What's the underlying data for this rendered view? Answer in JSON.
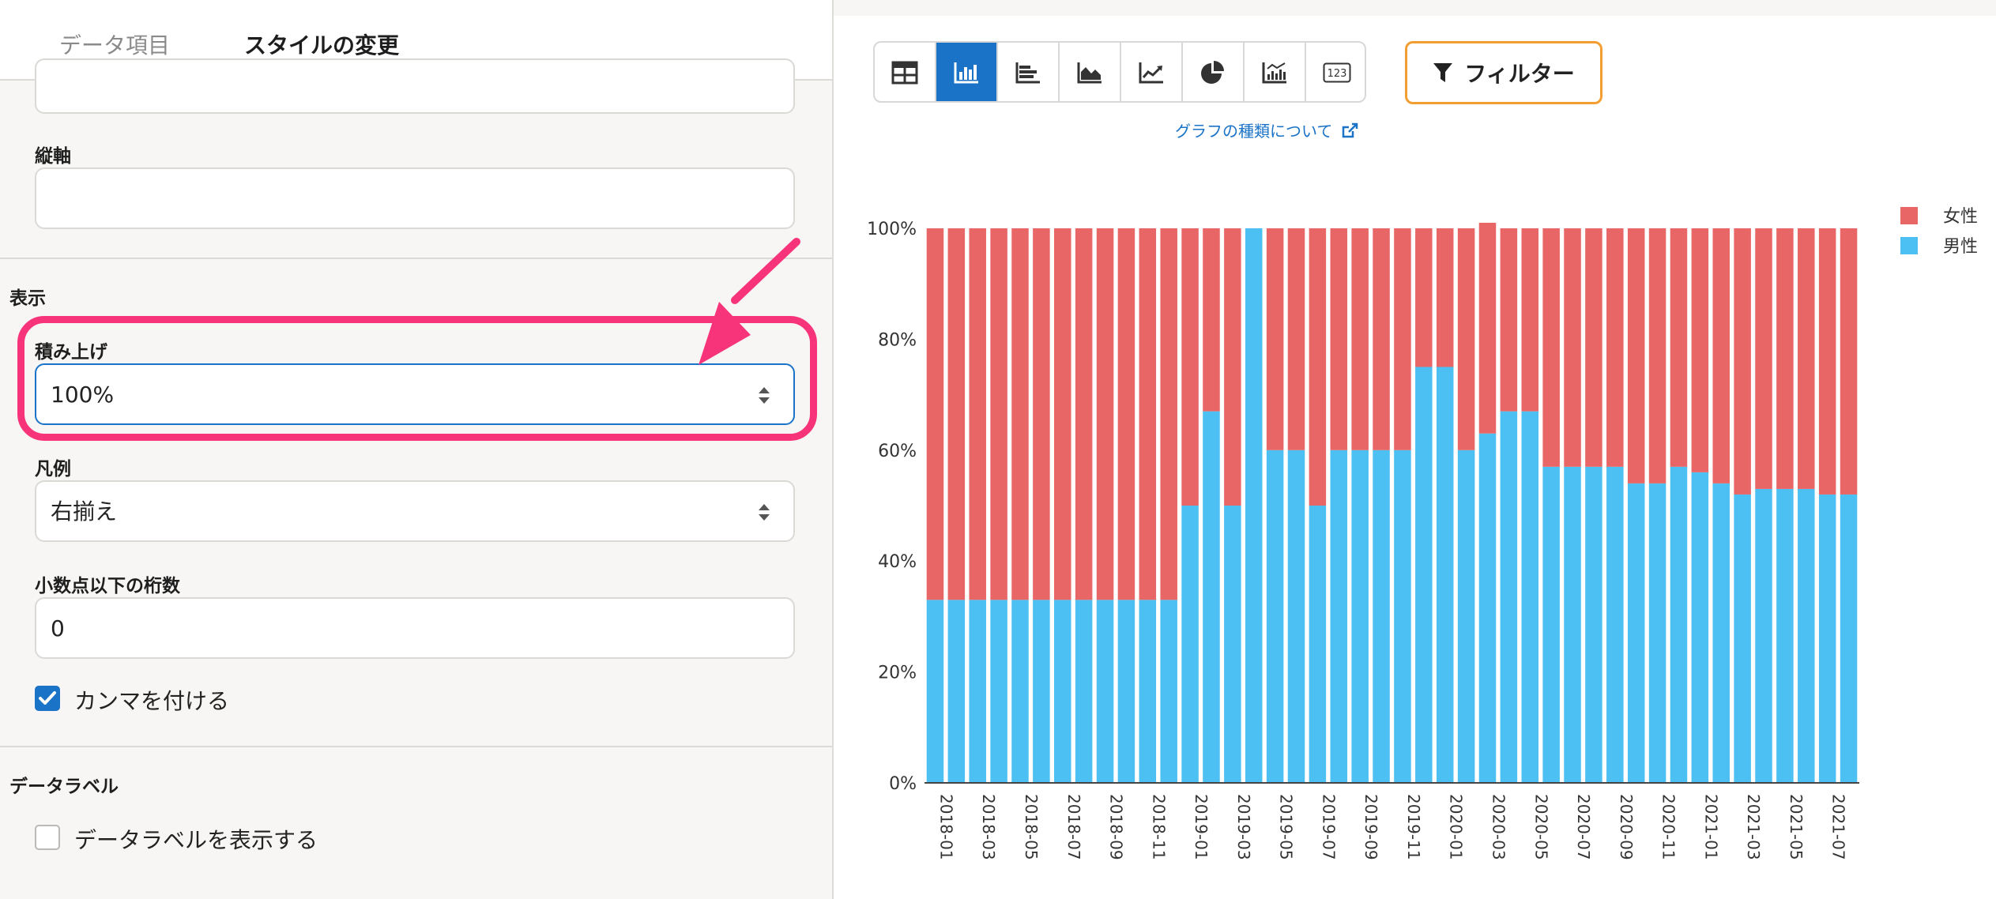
{
  "tabs": {
    "data_items": "データ項目",
    "style_change": "スタイルの変更"
  },
  "settings": {
    "vertical_axis": {
      "label": "縦軸",
      "value": ""
    },
    "display_section": "表示",
    "stacking": {
      "label": "積み上げ",
      "value": "100%"
    },
    "legend": {
      "label": "凡例",
      "value": "右揃え"
    },
    "decimals": {
      "label": "小数点以下の桁数",
      "value": "0"
    },
    "comma": {
      "label": "カンマを付ける",
      "checked": true
    },
    "data_label_section": "データラベル",
    "show_data_labels": {
      "label": "データラベルを表示する",
      "checked": false
    }
  },
  "toolbar": {
    "chart_types": [
      "table-icon",
      "bar-chart-icon",
      "horizontal-bar-icon",
      "area-chart-icon",
      "line-chart-icon",
      "pie-chart-icon",
      "combo-chart-icon",
      "number-icon"
    ],
    "active_index": 1,
    "number_icon_text": "123",
    "filter_label": "フィルター",
    "chart_type_link": "グラフの種類について"
  },
  "colors": {
    "female": "#e86666",
    "male": "#4cc0f2",
    "accent": "#1a73c7",
    "highlight": "#f7347a",
    "filter_border": "#f29e33"
  },
  "chart_data": {
    "type": "bar",
    "stacked": "100%",
    "categories": [
      "2018-01",
      "2018-02",
      "2018-03",
      "2018-04",
      "2018-05",
      "2018-06",
      "2018-07",
      "2018-08",
      "2018-09",
      "2018-10",
      "2018-11",
      "2018-12",
      "2019-01",
      "2019-02",
      "2019-03",
      "2019-04",
      "2019-05",
      "2019-06",
      "2019-07",
      "2019-08",
      "2019-09",
      "2019-10",
      "2019-11",
      "2019-12",
      "2020-01",
      "2020-02",
      "2020-03",
      "2020-04",
      "2020-05",
      "2020-06",
      "2020-07",
      "2020-08",
      "2020-09",
      "2020-10",
      "2020-11",
      "2020-12",
      "2021-01",
      "2021-02",
      "2021-03",
      "2021-04",
      "2021-05",
      "2021-06",
      "2021-07",
      "2021-08"
    ],
    "x_tick_labels": [
      "2018-01",
      "2018-03",
      "2018-05",
      "2018-07",
      "2018-09",
      "2018-11",
      "2019-01",
      "2019-03",
      "2019-05",
      "2019-07",
      "2019-09",
      "2019-11",
      "2020-01",
      "2020-03",
      "2020-05",
      "2020-07",
      "2020-09",
      "2020-11",
      "2021-01",
      "2021-03",
      "2021-05",
      "2021-07"
    ],
    "series": [
      {
        "name": "男性",
        "color": "#4cc0f2",
        "values": [
          33,
          33,
          33,
          33,
          33,
          33,
          33,
          33,
          33,
          33,
          33,
          33,
          50,
          67,
          50,
          100,
          60,
          60,
          50,
          60,
          60,
          60,
          60,
          75,
          75,
          60,
          63,
          67,
          67,
          57,
          57,
          57,
          57,
          54,
          54,
          57,
          56,
          54,
          52,
          53,
          53,
          53,
          52,
          52
        ]
      },
      {
        "name": "女性",
        "color": "#e86666",
        "values": [
          67,
          67,
          67,
          67,
          67,
          67,
          67,
          67,
          67,
          67,
          67,
          67,
          50,
          33,
          50,
          0,
          40,
          40,
          50,
          40,
          40,
          40,
          40,
          25,
          25,
          40,
          38,
          33,
          33,
          43,
          43,
          43,
          43,
          46,
          46,
          43,
          44,
          46,
          48,
          47,
          47,
          47,
          48,
          48
        ]
      }
    ],
    "y_ticks": [
      "0%",
      "20%",
      "40%",
      "60%",
      "80%",
      "100%"
    ],
    "ylim": [
      0,
      100
    ],
    "legend": [
      "女性",
      "男性"
    ],
    "legend_position": "top-right"
  }
}
